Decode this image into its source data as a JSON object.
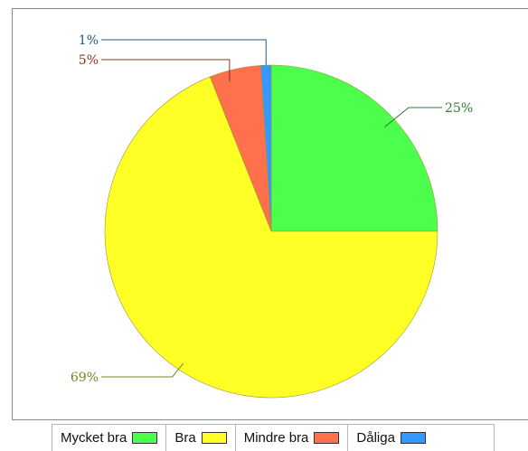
{
  "chart_data": {
    "type": "pie",
    "labels": [
      "Mycket bra",
      "Bra",
      "Mindre bra",
      "Dåliga"
    ],
    "values": [
      25,
      69,
      5,
      1
    ],
    "value_labels": [
      "25%",
      "69%",
      "5%",
      "1%"
    ],
    "colors": [
      "#4cff4c",
      "#ffff26",
      "#ff704c",
      "#3399ff"
    ],
    "label_colors": [
      "#2f7a2f",
      "#7f7f28",
      "#8b3020",
      "#1e5a8a"
    ],
    "legend_position": "bottom"
  }
}
